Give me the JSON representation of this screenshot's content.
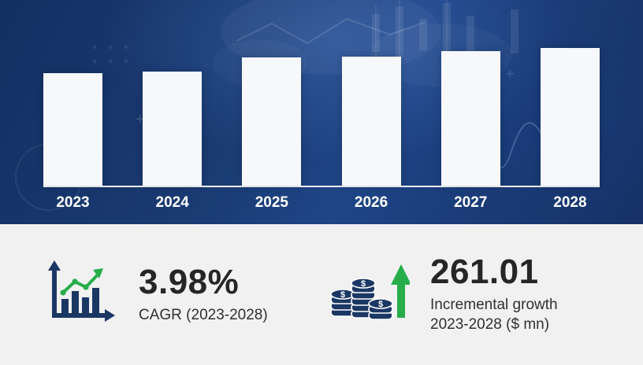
{
  "chart_data": {
    "type": "bar",
    "title": "",
    "categories": [
      "2023",
      "2024",
      "2025",
      "2026",
      "2027",
      "2028"
    ],
    "values": [
      143,
      145,
      163,
      164,
      171,
      175
    ],
    "value_note": "relative bar heights in px; chart shows no numeric y-axis",
    "xlabel": "",
    "ylabel": "",
    "ylim": [
      0,
      200
    ],
    "grid": false,
    "legend": false,
    "bar_color": "#f6f8fb",
    "background_color": "#1a3b73"
  },
  "stats": {
    "cagr": {
      "value": "3.98%",
      "label": "CAGR (2023-2028)"
    },
    "incremental_growth": {
      "value": "261.01",
      "label_line1": "Incremental growth",
      "label_line2": "2023-2028 ($ mn)"
    }
  },
  "icons": {
    "growth_chart": "bar-chart-with-green-trend-arrow",
    "coins": "coin-stacks-with-green-up-arrow",
    "dollar": "$"
  },
  "colors": {
    "navy": "#1b3764",
    "green": "#27ae4b",
    "text_dark": "#262626",
    "bottom_background": "#f1f1f2",
    "bar_fill": "#f6f8fb"
  }
}
